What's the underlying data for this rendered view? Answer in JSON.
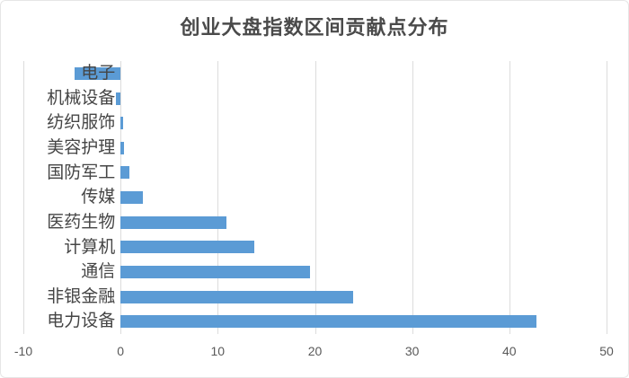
{
  "chart_data": {
    "type": "bar",
    "orientation": "horizontal",
    "title": "创业大盘指数区间贡献点分布",
    "categories": [
      "电子",
      "机械设备",
      "纺织服饰",
      "美容护理",
      "国防军工",
      "传媒",
      "医药生物",
      "计算机",
      "通信",
      "非银金融",
      "电力设备"
    ],
    "values": [
      -4.7,
      -0.5,
      0.3,
      0.4,
      0.9,
      2.3,
      10.9,
      13.8,
      19.5,
      23.9,
      42.8
    ],
    "xlabel": "",
    "ylabel": "",
    "xlim": [
      -10,
      50
    ],
    "xticks": [
      -10,
      0,
      10,
      20,
      30,
      40,
      50
    ],
    "grid": true,
    "legend": false,
    "colors": {
      "bar": "#5B9BD5",
      "gridline": "#DCDCDC",
      "tick_text": "#595959",
      "category_text": "#454545",
      "title_text": "#4A4A4A",
      "card_border": "#E6E6E6",
      "background": "#FFFFFF"
    }
  }
}
